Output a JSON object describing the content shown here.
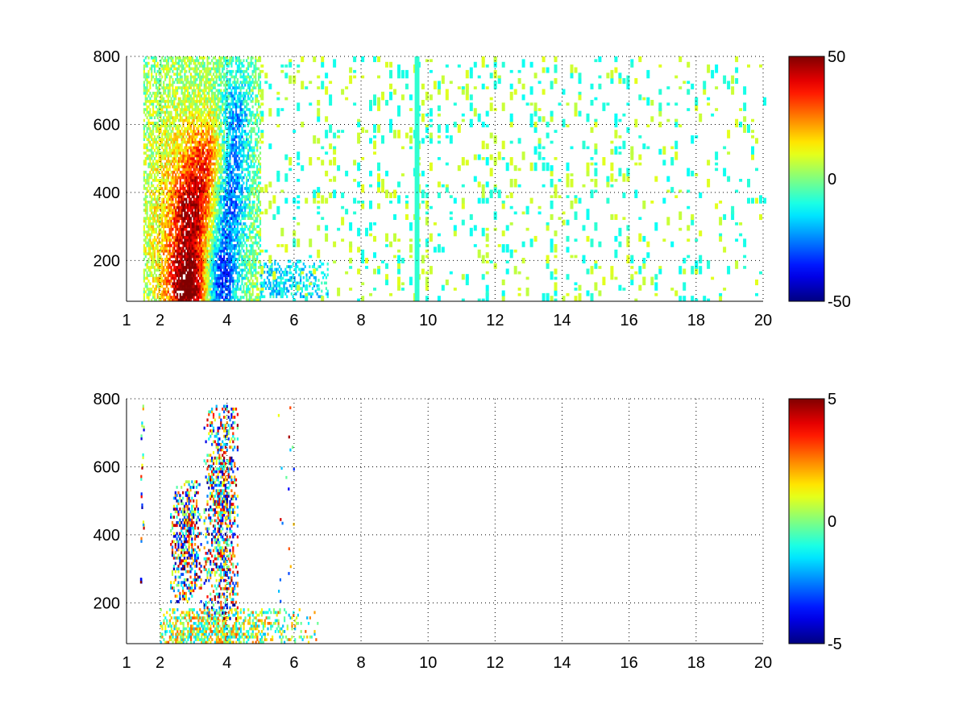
{
  "chart_data": [
    {
      "type": "heatmap",
      "title": "",
      "xlabel": "",
      "ylabel": "",
      "xlim": [
        1,
        20
      ],
      "ylim": [
        80,
        800
      ],
      "xticks": [
        1,
        2,
        4,
        6,
        8,
        10,
        12,
        14,
        16,
        18,
        20
      ],
      "yticks": [
        200,
        400,
        600,
        800
      ],
      "grid": true,
      "colormap": "jet",
      "clim": [
        -50,
        50
      ],
      "colorbar_ticks": [
        -50,
        0,
        50
      ],
      "seed": 11,
      "features": {
        "dense_region": {
          "x": [
            1.5,
            5.0
          ],
          "y": [
            80,
            800
          ]
        },
        "warm_hotspots": [
          {
            "x": 2.8,
            "y": 120,
            "value": 45
          },
          {
            "x": 2.9,
            "y": 340,
            "value": 28
          },
          {
            "x": 3.4,
            "y": 500,
            "value": 22
          }
        ],
        "cold_hotspots": [
          {
            "x": 3.8,
            "y": 140,
            "value": -40
          },
          {
            "x": 4.0,
            "y": 380,
            "value": -25
          },
          {
            "x": 4.2,
            "y": 600,
            "value": -18
          }
        ],
        "tail": {
          "x": [
            5.0,
            7.0
          ],
          "y": [
            90,
            200
          ],
          "value": -15
        },
        "sparse_region": {
          "x": [
            5.0,
            20.0
          ],
          "y": [
            80,
            800
          ],
          "values": [
            -10,
            8
          ]
        },
        "vertical_stripe": {
          "x": 9.6,
          "value": -8
        }
      }
    },
    {
      "type": "heatmap",
      "title": "",
      "xlabel": "",
      "ylabel": "",
      "xlim": [
        1,
        20
      ],
      "ylim": [
        80,
        800
      ],
      "xticks": [
        1,
        2,
        4,
        6,
        8,
        10,
        12,
        14,
        16,
        18,
        20
      ],
      "yticks": [
        200,
        400,
        600,
        800
      ],
      "grid": true,
      "colormap": "jet",
      "clim": [
        -5,
        5
      ],
      "colorbar_ticks": [
        -5,
        0,
        5
      ],
      "seed": 23,
      "features": {
        "base_band": {
          "x": [
            2.0,
            6.8
          ],
          "y": [
            80,
            180
          ],
          "values": [
            -2,
            3
          ]
        },
        "column_a": {
          "x": [
            2.3,
            3.2
          ],
          "y": [
            200,
            560
          ],
          "values": [
            -5,
            5
          ]
        },
        "column_b": {
          "x": [
            3.3,
            4.3
          ],
          "y": [
            150,
            780
          ],
          "values": [
            -5,
            5
          ]
        },
        "right_dots": {
          "x": [
            5.5,
            6.0
          ],
          "y": [
            200,
            800
          ],
          "values": [
            -5,
            5
          ]
        },
        "left_dashes": {
          "x": [
            1.4,
            1.5
          ],
          "y": [
            150,
            780
          ],
          "values": [
            -5,
            5
          ]
        }
      }
    }
  ]
}
